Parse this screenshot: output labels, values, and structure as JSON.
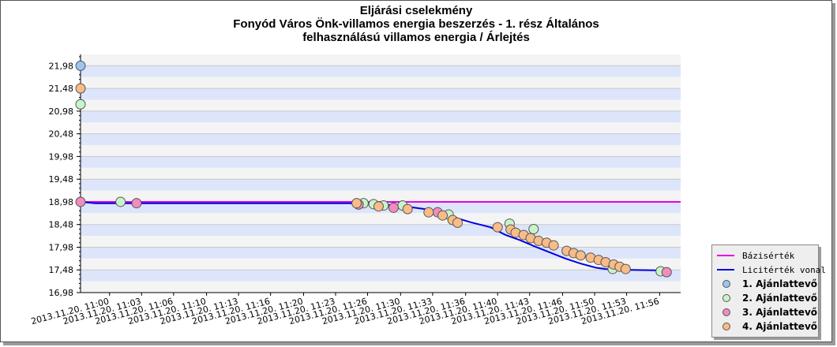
{
  "title_lines": [
    "Eljárási cselekmény",
    "Fonyód Város Önk-villamos energia beszerzés - 1. rész Általános",
    "felhasználású villamos energia / Árlejtés"
  ],
  "colors": {
    "band_blue": "#dde5fb",
    "band_gray": "#f4f4f4",
    "bazis": "#e600e6",
    "licit": "#0000e0",
    "bidder1": "#9cc4f0",
    "bidder2": "#c8f5c8",
    "bidder3": "#f08cc0",
    "bidder4": "#f8bc88"
  },
  "legend": {
    "bazis": "Bázisérték",
    "licit": "Licitérték vonal",
    "b1": "1. Ajánlattevő",
    "b2": "2. Ajánlattevő",
    "b3": "3. Ajánlattevő",
    "b4": "4. Ajánlattevő"
  },
  "chart_data": {
    "type": "line",
    "title": "Eljárási cselekmény — Fonyód Város Önk-villamos energia beszerzés - 1. rész Általános felhasználású villamos energia / Árlejtés",
    "x_range_minutes": [
      "2013.11.20. 10:57",
      "2013.11.20. 11:57"
    ],
    "x_ticks": [
      "2013.11.20. 11:00",
      "2013.11.20. 11:03",
      "2013.11.20. 11:06",
      "2013.11.20. 11:10",
      "2013.11.20. 11:13",
      "2013.11.20. 11:16",
      "2013.11.20. 11:20",
      "2013.11.20. 11:23",
      "2013.11.20. 11:26",
      "2013.11.20. 11:30",
      "2013.11.20. 11:33",
      "2013.11.20. 11:36",
      "2013.11.20. 11:40",
      "2013.11.20. 11:43",
      "2013.11.20. 11:46",
      "2013.11.20. 11:50",
      "2013.11.20. 11:53",
      "2013.11.20. 11:56"
    ],
    "x_tick_minutes": [
      59.9,
      63.1,
      66.3,
      69.6,
      72.8,
      76.0,
      79.3,
      82.5,
      85.7,
      89.0,
      92.2,
      95.5,
      98.7,
      101.9,
      105.2,
      108.4,
      111.6,
      114.9
    ],
    "y_ticks": [
      "21,98",
      "21,48",
      "20,98",
      "20,48",
      "19,98",
      "19,48",
      "18,98",
      "18,48",
      "17,98",
      "17,48",
      "16,98"
    ],
    "ylim": [
      16.98,
      22.23
    ],
    "bazis_value": 18.98,
    "licit_line": [
      [
        57,
        18.98
      ],
      [
        58.5,
        18.95
      ],
      [
        64,
        18.95
      ],
      [
        82,
        18.95
      ],
      [
        85,
        18.95
      ],
      [
        88,
        18.91
      ],
      [
        89.5,
        18.88
      ],
      [
        91.5,
        18.82
      ],
      [
        93,
        18.75
      ],
      [
        94.2,
        18.65
      ],
      [
        96,
        18.53
      ],
      [
        98,
        18.42
      ],
      [
        99.5,
        18.25
      ],
      [
        101,
        18.13
      ],
      [
        102.5,
        17.99
      ],
      [
        104,
        17.86
      ],
      [
        105.5,
        17.73
      ],
      [
        107,
        17.62
      ],
      [
        108.5,
        17.53
      ],
      [
        109.5,
        17.5
      ],
      [
        112,
        17.48
      ],
      [
        114.5,
        17.47
      ],
      [
        115.3,
        17.45
      ]
    ],
    "series": [
      {
        "name": "1. Ajánlattevő",
        "points": [
          [
            57,
            21.98
          ]
        ]
      },
      {
        "name": "2. Ajánlattevő",
        "points": [
          [
            57,
            21.13
          ],
          [
            61,
            18.98
          ],
          [
            85.3,
            18.95
          ],
          [
            86.3,
            18.93
          ],
          [
            87.3,
            18.9
          ],
          [
            89.2,
            18.9
          ],
          [
            93.8,
            18.7
          ],
          [
            99.9,
            18.5
          ],
          [
            102.3,
            18.38
          ],
          [
            110.2,
            17.5
          ],
          [
            115,
            17.45
          ]
        ]
      },
      {
        "name": "3. Ajánlattevő",
        "points": [
          [
            57,
            18.98
          ],
          [
            62.6,
            18.95
          ],
          [
            84.8,
            18.92
          ],
          [
            88.3,
            18.85
          ],
          [
            92.7,
            18.75
          ],
          [
            115.6,
            17.43
          ]
        ]
      },
      {
        "name": "4. Ajánlattevő",
        "points": [
          [
            57,
            21.48
          ],
          [
            84.6,
            18.95
          ],
          [
            86.8,
            18.88
          ],
          [
            89.7,
            18.82
          ],
          [
            91.8,
            18.75
          ],
          [
            93.2,
            18.68
          ],
          [
            94.2,
            18.58
          ],
          [
            94.7,
            18.52
          ],
          [
            98.7,
            18.42
          ],
          [
            100.0,
            18.37
          ],
          [
            100.5,
            18.3
          ],
          [
            101.3,
            18.25
          ],
          [
            102.0,
            18.18
          ],
          [
            102.8,
            18.12
          ],
          [
            103.6,
            18.08
          ],
          [
            104.3,
            18.02
          ],
          [
            105.6,
            17.9
          ],
          [
            106.3,
            17.85
          ],
          [
            107.0,
            17.8
          ],
          [
            108.0,
            17.75
          ],
          [
            108.8,
            17.7
          ],
          [
            109.5,
            17.65
          ],
          [
            110.3,
            17.6
          ],
          [
            110.9,
            17.55
          ],
          [
            111.5,
            17.5
          ]
        ]
      }
    ]
  }
}
